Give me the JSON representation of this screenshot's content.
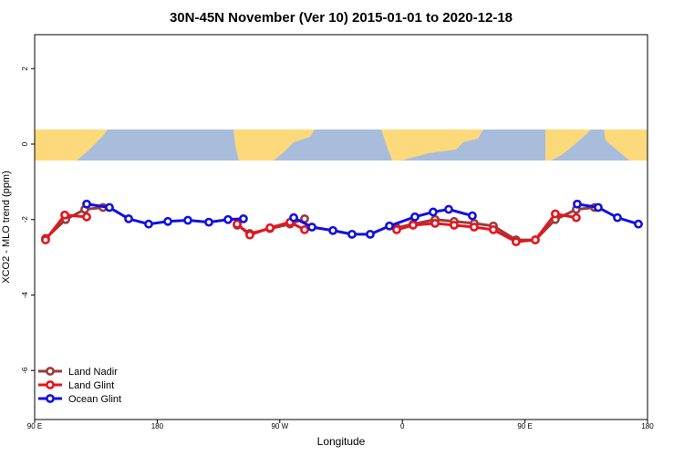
{
  "chart_data": {
    "type": "line",
    "title": "30N-45N November (Ver 10)   2015-01-01 to 2020-12-18",
    "x_label": "Longitude",
    "y_label": "XCO2 - MLO trend (ppm)",
    "xlim": [
      90,
      540
    ],
    "ylim": [
      -7.3,
      2.9
    ],
    "xticks": [
      {
        "value": 90,
        "label": "90 E"
      },
      180,
      {
        "value": 270,
        "label": "90 W"
      },
      {
        "value": 360,
        "label": "0"
      },
      {
        "value": 450,
        "label": "90 E"
      },
      {
        "value": 540,
        "label": "180"
      }
    ],
    "yticks": [
      -6,
      -4,
      -2,
      0,
      2
    ],
    "legend": "bottom-left",
    "series": [
      {
        "name": "Land Nadir",
        "color": "#9a3b3b",
        "x": [
          98.0,
          112.8,
          126.8,
          140.2,
          null,
          238.7,
          248.0,
          262.8,
          277.5,
          288.2,
          null,
          355.8,
          367.9,
          384.0,
          398.0,
          412.7,
          426.8,
          443.5,
          457.6,
          472.3,
          487.7,
          501.1
        ],
        "values": [
          -2.5,
          -2.0,
          -1.73,
          -1.68,
          null,
          -2.15,
          -2.37,
          -2.24,
          -2.12,
          -1.98,
          null,
          -2.22,
          -2.12,
          -2.0,
          -2.05,
          -2.1,
          -2.17,
          -2.54,
          -2.54,
          -2.0,
          -1.73,
          -1.68
        ]
      },
      {
        "name": "Land Glint",
        "color": "#e8141c",
        "x": [
          98.0,
          112.1,
          128.2,
          null,
          238.7,
          248.0,
          262.8,
          277.5,
          288.2,
          null,
          355.8,
          367.9,
          384.0,
          398.0,
          412.7,
          426.8,
          443.5,
          457.6,
          472.3,
          487.7
        ],
        "values": [
          -2.54,
          -1.88,
          -1.93,
          null,
          -2.12,
          -2.41,
          -2.22,
          -2.07,
          -2.27,
          null,
          -2.27,
          -2.15,
          -2.1,
          -2.15,
          -2.2,
          -2.27,
          -2.59,
          -2.54,
          -1.85,
          -1.95
        ]
      },
      {
        "name": "Ocean Glint",
        "color": "#1010e0",
        "x": [
          128.2,
          144.9,
          159.0,
          173.7,
          187.8,
          202.5,
          217.9,
          232.0,
          243.3,
          null,
          280.2,
          293.6,
          309.0,
          323.0,
          336.4,
          350.5,
          369.2,
          382.6,
          394.0,
          411.4,
          null,
          488.4,
          503.8,
          517.9,
          533.3
        ],
        "values": [
          -1.59,
          -1.68,
          -1.98,
          -2.12,
          -2.05,
          -2.02,
          -2.07,
          -2.0,
          -1.98,
          null,
          -1.95,
          -2.2,
          -2.29,
          -2.39,
          -2.39,
          -2.17,
          -1.93,
          -1.8,
          -1.73,
          -1.9,
          null,
          -1.59,
          -1.68,
          -1.95,
          -2.12
        ]
      }
    ]
  }
}
